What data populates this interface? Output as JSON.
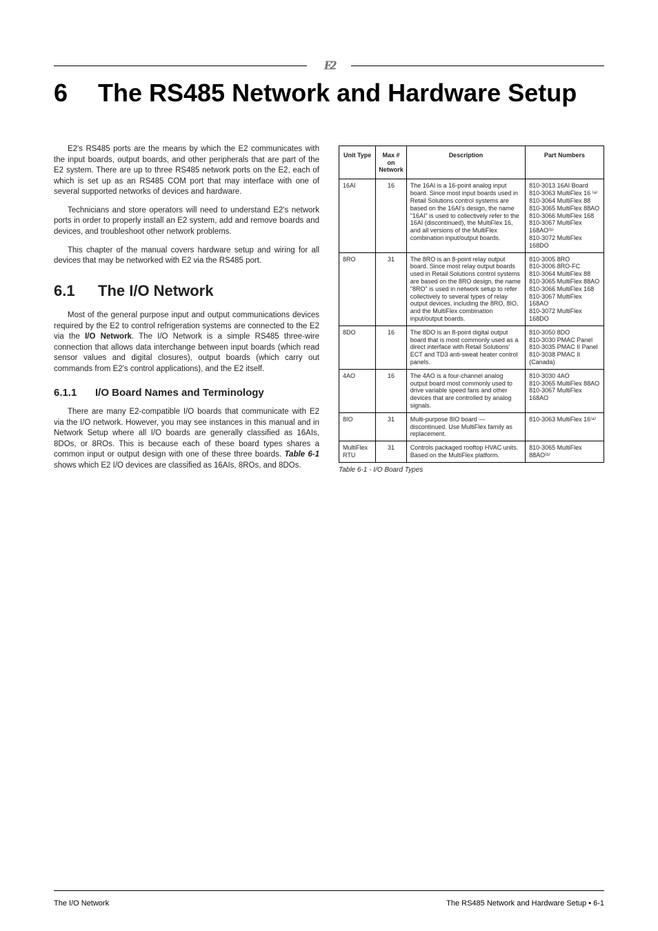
{
  "chapter": {
    "num": "6",
    "title": "The RS485 Network and Hardware Setup"
  },
  "sec61": {
    "num": "6.1",
    "title": "The I/O Network"
  },
  "sec611": {
    "num": "6.1.1",
    "title": "I/O Board Names and Terminology"
  },
  "left": {
    "p1": "E2's RS485 ports are the means by which the E2 communicates with the input boards, output boards, and other peripherals that are part of the E2 system. There are up to three RS485 network ports on the E2, each of which is set up as an RS485 COM port that may interface with one of several supported networks of devices and hardware.",
    "p2": "Technicians and store operators will need to understand E2's network ports in order to properly install an E2 system, add and remove boards and devices, and troubleshoot other network problems.",
    "p3": "This chapter of the manual covers hardware setup and wiring for all devices that may be networked with E2 via the RS485 port.",
    "p4": "Most of the general purpose input and output communications devices required by the E2 to control refrigeration systems are connected to the E2 via the ",
    "p4b": "I/O Network",
    "p4c": ". The I/O Network is a simple RS485 three-wire connection that allows data interchange between input boards (which read sensor values and digital closures), output boards (which carry out commands from E2's control applications), and the E2 itself.",
    "p5": "There are many E2-compatible I/O boards that communicate with E2 via the I/O network. However, you may see instances in this manual and in Network Setup where all I/O boards are generally classified as 16AIs, 8DOs, or 8ROs. This is because each of these board types shares a common input or output design with one of these three boards. ",
    "p5b": "Table 6-1",
    "p5c": " shows which E2 I/O devices are classified as 16AIs, 8ROs, and 8DOs."
  },
  "table": {
    "headers": [
      "Unit Type",
      "Max # on Network",
      "Description",
      "Part Numbers"
    ],
    "rows": [
      {
        "name": "16AI",
        "max": "16",
        "desc": "The 16AI is a 16-point analog input board. Since most input boards used in Retail Solutions control systems are based on the 16AI's design, the name \"16AI\" is used to collectively refer to the 16AI (discontinued), the MultiFlex 16, and all versions of the MultiFlex combination input/output boards.",
        "pn": "810-3013 16AI Board\n810-3063 MultiFlex 16 ⁽ᵃ⁾\n810-3064 MultiFlex 88\n810-3065 MultiFlex 88AO\n810-3066 MultiFlex 168\n810-3067 MultiFlex 168AO⁽ᵇ⁾\n810-3072 MultiFlex 168DO"
      },
      {
        "name": "8RO",
        "max": "31",
        "desc": "The 8RO is an 8-point relay output board. Since most relay output boards used in Retail Solutions control systems are based on the 8RO design, the name \"8RO\" is used in network setup to refer collectively to several types of relay output devices, including the 8RO, 8IO, and the MultiFlex combination input/output boards.",
        "pn": "810-3005 8RO\n810-3006 8RO-FC\n810-3064 MultiFlex 88\n810-3065 MultiFlex 88AO\n810-3066 MultiFlex 168\n810-3067 MultiFlex 168AO\n810-3072 MultiFlex 168DO"
      },
      {
        "name": "8DO",
        "max": "16",
        "desc": "The 8DO is an 8-point digital output board that is most commonly used as a direct interface with Retail Solutions' ECT and TD3 anti-sweat heater control panels.",
        "pn": "810-3050 8DO\n810-3030 PMAC Panel\n810-3035 PMAC II Panel\n810-3038 PMAC II (Canada)"
      },
      {
        "name": "4AO",
        "max": "16",
        "desc": "The 4AO is a four-channel analog output board most commonly used to drive variable speed fans and other devices that are controlled by analog signals.",
        "pn": "810-3030 4AO\n810-3065 MultiFlex 88AO\n810-3067 MultiFlex 168AO"
      },
      {
        "name": "8IO",
        "max": "31",
        "desc": "Multi-purpose 8IO board — discontinued. Use MultiFlex family as replacement.",
        "pn": "810-3063 MultiFlex 16⁽ᵃ⁾"
      },
      {
        "name": "MultiFlex RTU",
        "max": "31",
        "desc": "Controls packaged rooftop HVAC units. Based on the MultiFlex platform.",
        "pn": "810-3065 MultiFlex 88AO⁽ᵇ⁾"
      }
    ],
    "caption": "Table 6-1 - I/O Board Types"
  },
  "footer": {
    "left": "The I/O Network",
    "center": "The RS485 Network and Hardware Setup • 6-1"
  }
}
